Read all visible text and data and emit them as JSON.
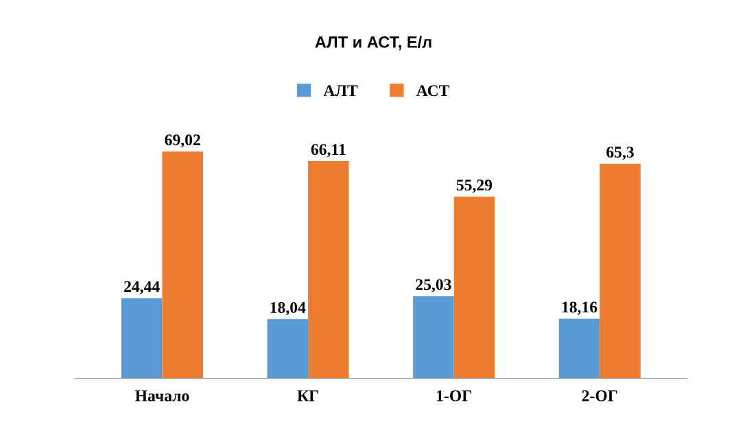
{
  "chart_data": {
    "type": "bar",
    "title": "АЛТ и АСТ, Е/л",
    "categories": [
      "Начало",
      "КГ",
      "1-ОГ",
      "2-ОГ"
    ],
    "series": [
      {
        "name": "АЛТ",
        "color": "#5b9bd5",
        "values": [
          24.44,
          18.04,
          25.03,
          18.16
        ],
        "value_labels": [
          "24,44",
          "18,04",
          "25,03",
          "18,16"
        ]
      },
      {
        "name": "АСТ",
        "color": "#ed7d31",
        "values": [
          69.02,
          66.11,
          55.29,
          65.3
        ],
        "value_labels": [
          "69,02",
          "66,11",
          "55,29",
          "65,3"
        ]
      }
    ],
    "legend": "top",
    "grid": false
  }
}
